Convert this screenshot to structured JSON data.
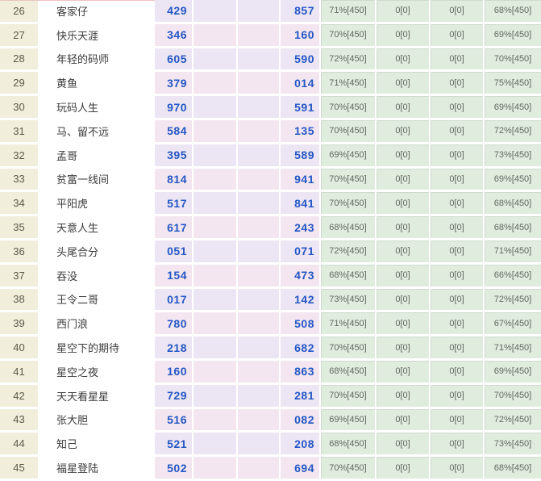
{
  "colors": {
    "rank_column_bg": "#f1eedb",
    "pick_column_bg_a": "#ece5f4",
    "pick_column_bg_b": "#f4e6f0",
    "stat_column_bg": "#dfecde",
    "pick_text_blue": "#2457c5",
    "stat_text_gray": "#64695f",
    "grid_line": "#ffffff",
    "top_accent_line": "#eec3c0"
  },
  "table": {
    "rows": [
      {
        "rank": "26",
        "name": "客家仔",
        "val1": "429",
        "val2": "857",
        "pct1": "71%[450]",
        "zero1": "0[0]",
        "zero2": "0[0]",
        "pct2": "68%[450]"
      },
      {
        "rank": "27",
        "name": "快乐天涯",
        "val1": "346",
        "val2": "160",
        "pct1": "70%[450]",
        "zero1": "0[0]",
        "zero2": "0[0]",
        "pct2": "69%[450]"
      },
      {
        "rank": "28",
        "name": "年轻的码师",
        "val1": "605",
        "val2": "590",
        "pct1": "72%[450]",
        "zero1": "0[0]",
        "zero2": "0[0]",
        "pct2": "70%[450]"
      },
      {
        "rank": "29",
        "name": "黄鱼",
        "val1": "379",
        "val2": "014",
        "pct1": "71%[450]",
        "zero1": "0[0]",
        "zero2": "0[0]",
        "pct2": "75%[450]"
      },
      {
        "rank": "30",
        "name": "玩码人生",
        "val1": "970",
        "val2": "591",
        "pct1": "70%[450]",
        "zero1": "0[0]",
        "zero2": "0[0]",
        "pct2": "69%[450]"
      },
      {
        "rank": "31",
        "name": "马、留不远",
        "val1": "584",
        "val2": "135",
        "pct1": "70%[450]",
        "zero1": "0[0]",
        "zero2": "0[0]",
        "pct2": "72%[450]"
      },
      {
        "rank": "32",
        "name": "孟哥",
        "val1": "395",
        "val2": "589",
        "pct1": "69%[450]",
        "zero1": "0[0]",
        "zero2": "0[0]",
        "pct2": "73%[450]"
      },
      {
        "rank": "33",
        "name": "贫富一线间",
        "val1": "814",
        "val2": "941",
        "pct1": "70%[450]",
        "zero1": "0[0]",
        "zero2": "0[0]",
        "pct2": "69%[450]"
      },
      {
        "rank": "34",
        "name": "平阳虎",
        "val1": "517",
        "val2": "841",
        "pct1": "70%[450]",
        "zero1": "0[0]",
        "zero2": "0[0]",
        "pct2": "68%[450]"
      },
      {
        "rank": "35",
        "name": "天意人生",
        "val1": "617",
        "val2": "243",
        "pct1": "68%[450]",
        "zero1": "0[0]",
        "zero2": "0[0]",
        "pct2": "68%[450]"
      },
      {
        "rank": "36",
        "name": "头尾合分",
        "val1": "051",
        "val2": "071",
        "pct1": "72%[450]",
        "zero1": "0[0]",
        "zero2": "0[0]",
        "pct2": "71%[450]"
      },
      {
        "rank": "37",
        "name": "吞没",
        "val1": "154",
        "val2": "473",
        "pct1": "68%[450]",
        "zero1": "0[0]",
        "zero2": "0[0]",
        "pct2": "66%[450]"
      },
      {
        "rank": "38",
        "name": "王令二哥",
        "val1": "017",
        "val2": "142",
        "pct1": "73%[450]",
        "zero1": "0[0]",
        "zero2": "0[0]",
        "pct2": "72%[450]"
      },
      {
        "rank": "39",
        "name": "西门浪",
        "val1": "780",
        "val2": "508",
        "pct1": "71%[450]",
        "zero1": "0[0]",
        "zero2": "0[0]",
        "pct2": "67%[450]"
      },
      {
        "rank": "40",
        "name": "星空下的期待",
        "val1": "218",
        "val2": "682",
        "pct1": "70%[450]",
        "zero1": "0[0]",
        "zero2": "0[0]",
        "pct2": "71%[450]"
      },
      {
        "rank": "41",
        "name": "星空之夜",
        "val1": "160",
        "val2": "863",
        "pct1": "68%[450]",
        "zero1": "0[0]",
        "zero2": "0[0]",
        "pct2": "69%[450]"
      },
      {
        "rank": "42",
        "name": "天天看星星",
        "val1": "729",
        "val2": "281",
        "pct1": "70%[450]",
        "zero1": "0[0]",
        "zero2": "0[0]",
        "pct2": "70%[450]"
      },
      {
        "rank": "43",
        "name": "张大胆",
        "val1": "516",
        "val2": "082",
        "pct1": "69%[450]",
        "zero1": "0[0]",
        "zero2": "0[0]",
        "pct2": "72%[450]"
      },
      {
        "rank": "44",
        "name": "知己",
        "val1": "521",
        "val2": "208",
        "pct1": "68%[450]",
        "zero1": "0[0]",
        "zero2": "0[0]",
        "pct2": "73%[450]"
      },
      {
        "rank": "45",
        "name": "福星登陆",
        "val1": "502",
        "val2": "694",
        "pct1": "70%[450]",
        "zero1": "0[0]",
        "zero2": "0[0]",
        "pct2": "68%[450]"
      }
    ]
  }
}
